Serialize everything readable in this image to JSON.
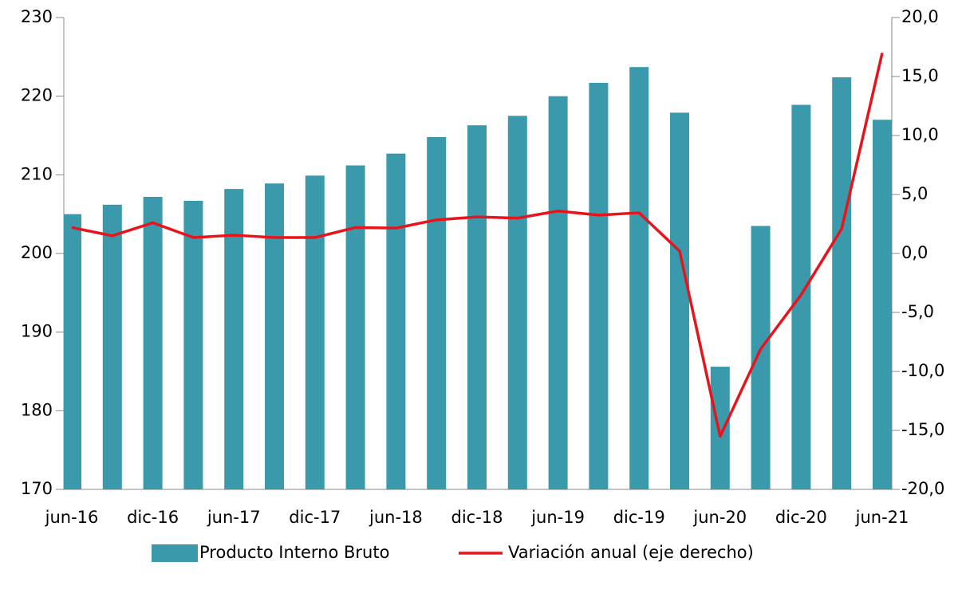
{
  "chart_data": {
    "type": "bar_line",
    "categories": [
      "jun-16",
      null,
      "dic-16",
      null,
      "jun-17",
      null,
      "dic-17",
      null,
      "jun-18",
      null,
      "dic-18",
      null,
      "jun-19",
      null,
      "dic-19",
      null,
      "jun-20",
      null,
      "dic-20",
      null,
      "jun-21"
    ],
    "series": [
      {
        "name": "Producto Interno Bruto",
        "type": "bar",
        "color": "#3a9aac",
        "values": [
          205.0,
          206.2,
          207.2,
          206.7,
          208.2,
          208.9,
          209.9,
          211.2,
          212.7,
          214.8,
          216.3,
          217.5,
          220.0,
          221.7,
          223.7,
          217.9,
          185.6,
          203.5,
          218.9,
          222.4,
          217.0
        ]
      },
      {
        "name": "Variación anual (eje derecho)",
        "type": "line",
        "axis": "y2",
        "color": "#e8141c",
        "values": [
          2.2,
          1.5,
          2.6,
          1.35,
          1.55,
          1.35,
          1.35,
          2.2,
          2.15,
          2.85,
          3.1,
          3.0,
          3.6,
          3.25,
          3.45,
          0.2,
          -15.5,
          -8.1,
          -3.5,
          2.1,
          17.0
        ]
      }
    ],
    "ylim": [
      170,
      230
    ],
    "yticks": [
      170,
      180,
      190,
      200,
      210,
      220,
      230
    ],
    "y2lim": [
      -20,
      20
    ],
    "y2ticks": [
      {
        "value": -20,
        "label": "-20,0"
      },
      {
        "value": -15,
        "label": "-15,0"
      },
      {
        "value": -10,
        "label": "-10,0"
      },
      {
        "value": -5,
        "label": "-5,0"
      },
      {
        "value": 0,
        "label": "0,0"
      },
      {
        "value": 5,
        "label": "5,0"
      },
      {
        "value": 10,
        "label": "10,0"
      },
      {
        "value": 15,
        "label": "15,0"
      },
      {
        "value": 20,
        "label": "20,0"
      }
    ]
  }
}
